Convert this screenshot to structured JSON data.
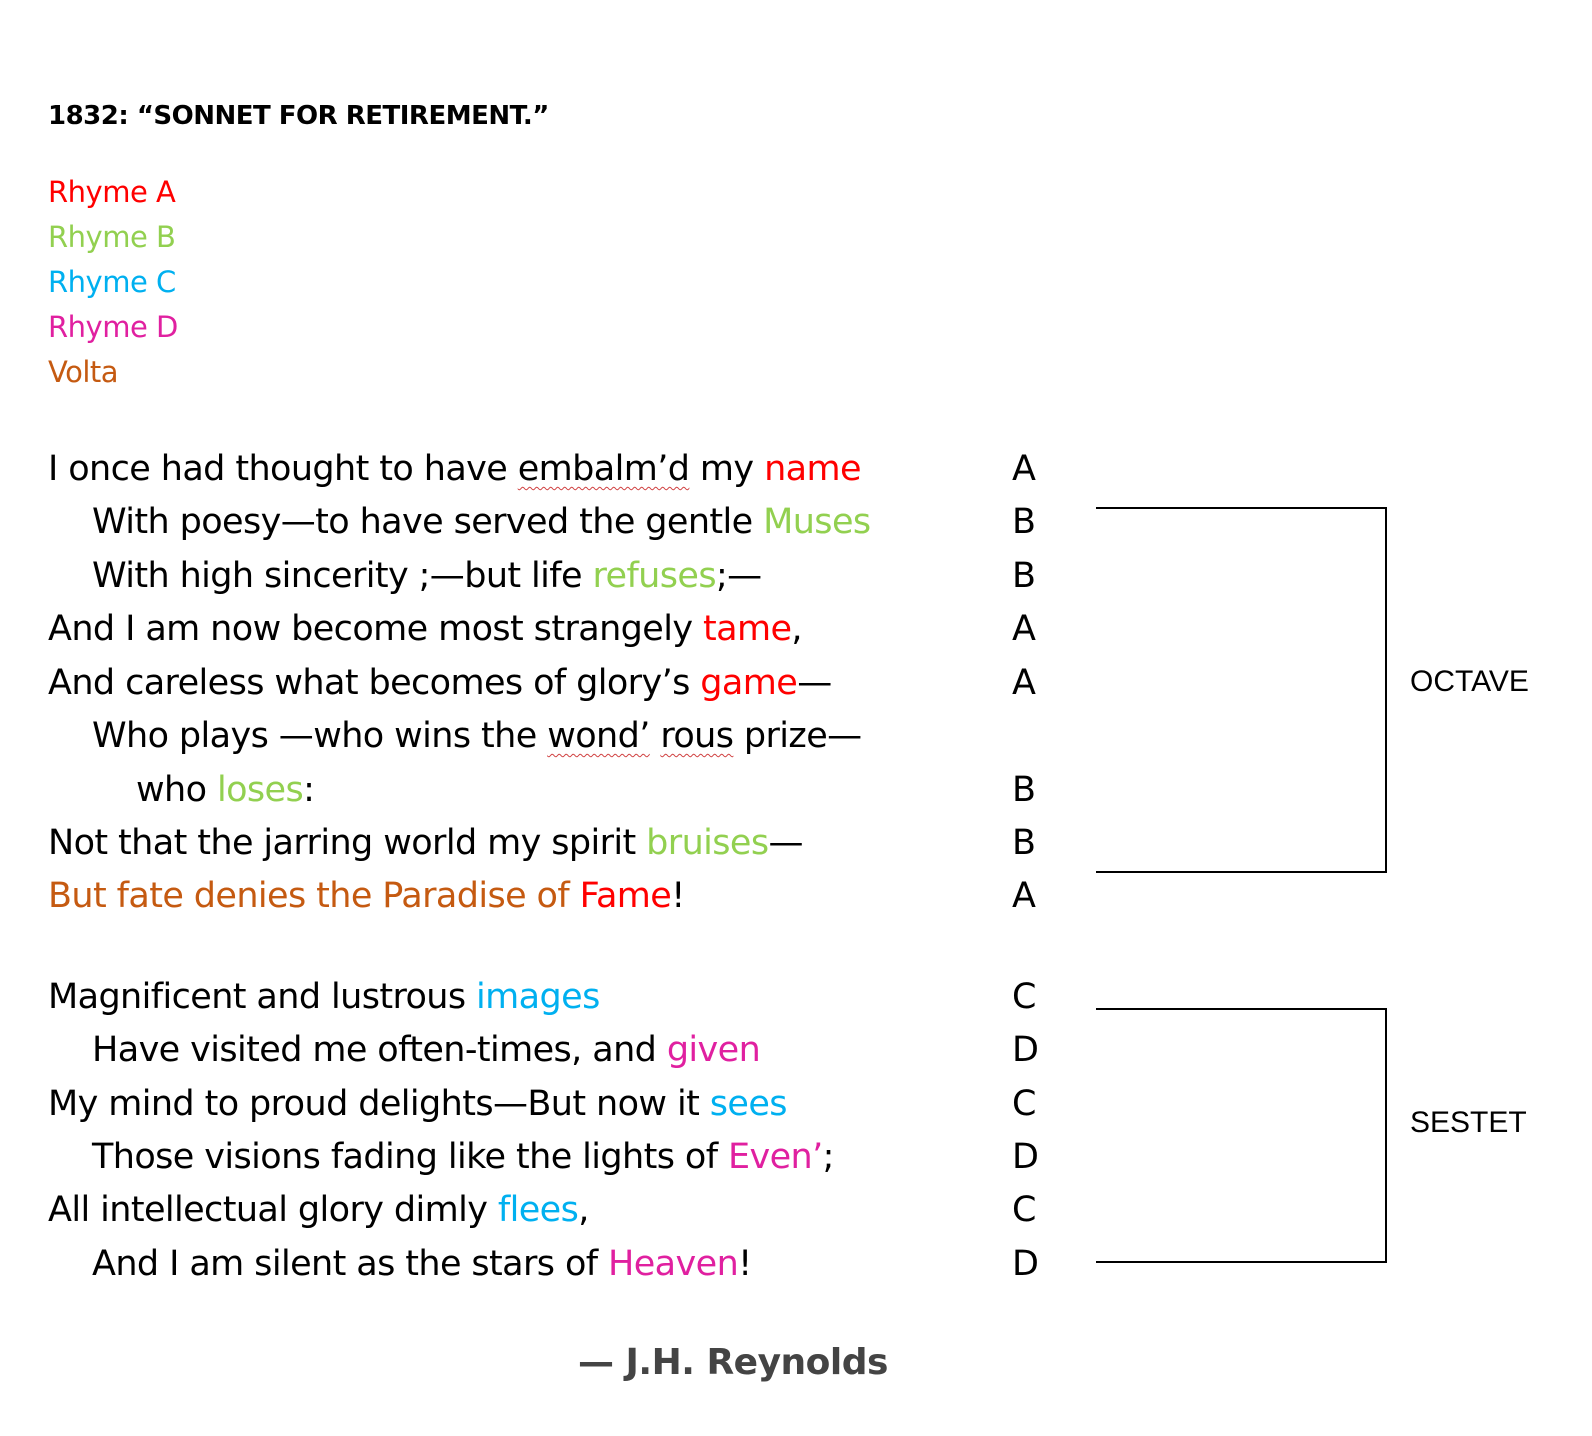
{
  "colors": {
    "rhyme_a": "#ff0000",
    "rhyme_b": "#92d050",
    "rhyme_c": "#00b0f0",
    "rhyme_d": "#e020a0",
    "volta": "#c55a11",
    "text": "#000000",
    "author": "#444444"
  },
  "title": "1832: “SONNET FOR RETIREMENT.”",
  "legend": [
    {
      "label": "Rhyme A",
      "color": "#ff0000"
    },
    {
      "label": "Rhyme B",
      "color": "#92d050"
    },
    {
      "label": "Rhyme C",
      "color": "#00b0f0"
    },
    {
      "label": "Rhyme D",
      "color": "#e020a0"
    },
    {
      "label": "Volta",
      "color": "#c55a11"
    }
  ],
  "octave": {
    "lines": [
      {
        "segments": [
          {
            "text": "I once had thought to have ",
            "style": "text"
          },
          {
            "text": "embalm’d",
            "style": "squiggle"
          },
          {
            "text": " my ",
            "style": "text"
          },
          {
            "text": "name",
            "style": "rhyme_a"
          }
        ],
        "rhyme": "A"
      },
      {
        "segments": [
          {
            "text": "With poesy—to have served the gentle ",
            "style": "text"
          },
          {
            "text": "Muses",
            "style": "rhyme_b"
          }
        ],
        "rhyme": "B"
      },
      {
        "segments": [
          {
            "text": "With high sincerity ;—but life ",
            "style": "text"
          },
          {
            "text": "refuses",
            "style": "rhyme_b"
          },
          {
            "text": ";—",
            "style": "text"
          }
        ],
        "rhyme": "B"
      },
      {
        "segments": [
          {
            "text": "And I am now become most strangely ",
            "style": "text"
          },
          {
            "text": "tame",
            "style": "rhyme_a"
          },
          {
            "text": ",",
            "style": "text"
          }
        ],
        "rhyme": "A"
      },
      {
        "segments": [
          {
            "text": "And careless what becomes of glory’s ",
            "style": "text"
          },
          {
            "text": "game",
            "style": "rhyme_a"
          },
          {
            "text": "—",
            "style": "text"
          }
        ],
        "rhyme": "A"
      },
      {
        "segments": [
          {
            "text": "Who plays —who wins the ",
            "style": "text"
          },
          {
            "text": "wond’",
            "style": "squiggle"
          },
          {
            "text": " ",
            "style": "text"
          },
          {
            "text": "rous",
            "style": "squiggle"
          },
          {
            "text": " prize—",
            "style": "text"
          }
        ],
        "rhyme": ""
      },
      {
        "segments": [
          {
            "text": "who ",
            "style": "text"
          },
          {
            "text": "loses",
            "style": "rhyme_b"
          },
          {
            "text": ":",
            "style": "text"
          }
        ],
        "rhyme": "B"
      },
      {
        "segments": [
          {
            "text": "Not that the jarring world my spirit ",
            "style": "text"
          },
          {
            "text": "bruises",
            "style": "rhyme_b"
          },
          {
            "text": "—",
            "style": "text"
          }
        ],
        "rhyme": "B"
      },
      {
        "segments": [
          {
            "text": "But fate denies the Paradise of ",
            "style": "volta"
          },
          {
            "text": "Fame",
            "style": "rhyme_a"
          },
          {
            "text": "!",
            "style": "text"
          }
        ],
        "rhyme": "A"
      }
    ],
    "label": "OCTAVE"
  },
  "sestet": {
    "lines": [
      {
        "segments": [
          {
            "text": "Magnificent and lustrous ",
            "style": "text"
          },
          {
            "text": "images",
            "style": "rhyme_c"
          }
        ],
        "rhyme": "C"
      },
      {
        "segments": [
          {
            "text": "Have visited me often-times, and ",
            "style": "text"
          },
          {
            "text": "given",
            "style": "rhyme_d"
          }
        ],
        "rhyme": "D"
      },
      {
        "segments": [
          {
            "text": "My mind to proud delights—But now it ",
            "style": "text"
          },
          {
            "text": "sees",
            "style": "rhyme_c"
          }
        ],
        "rhyme": "C"
      },
      {
        "segments": [
          {
            "text": "Those visions fading like the lights of ",
            "style": "text"
          },
          {
            "text": "Even’",
            "style": "rhyme_d"
          },
          {
            "text": ";",
            "style": "text"
          }
        ],
        "rhyme": "D"
      },
      {
        "segments": [
          {
            "text": "All intellectual glory dimly ",
            "style": "text"
          },
          {
            "text": "flees",
            "style": "rhyme_c"
          },
          {
            "text": ",",
            "style": "text"
          }
        ],
        "rhyme": "C"
      },
      {
        "segments": [
          {
            "text": "And I am silent as the stars of ",
            "style": "text"
          },
          {
            "text": "Heaven",
            "style": "rhyme_d"
          },
          {
            "text": "!",
            "style": "text"
          }
        ],
        "rhyme": "D"
      }
    ],
    "label": "SESTET"
  },
  "author": "— J.H. Reynolds"
}
